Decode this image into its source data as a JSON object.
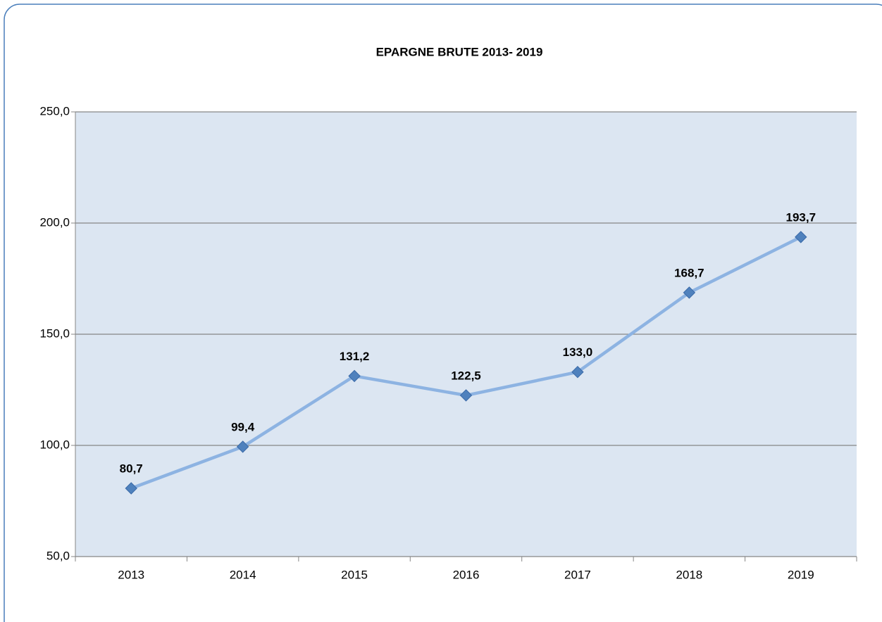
{
  "chart_data": {
    "type": "line",
    "title": "EPARGNE BRUTE 2013- 2019",
    "categories": [
      "2013",
      "2014",
      "2015",
      "2016",
      "2017",
      "2018",
      "2019"
    ],
    "values": [
      80.7,
      99.4,
      131.2,
      122.5,
      133.0,
      168.7,
      193.7
    ],
    "value_labels": [
      "80,7",
      "99,4",
      "131,2",
      "122,5",
      "133,0",
      "168,7",
      "193,7"
    ],
    "color": "#8db3e2",
    "marker_color": "#4f81bd",
    "ylim": [
      50,
      250
    ],
    "yticks": [
      {
        "value": 50,
        "label": "50,0"
      },
      {
        "value": 100,
        "label": "100,0"
      },
      {
        "value": 150,
        "label": "150,0"
      },
      {
        "value": 200,
        "label": "200,0"
      },
      {
        "value": 250,
        "label": "250,0"
      }
    ],
    "grid": true
  }
}
